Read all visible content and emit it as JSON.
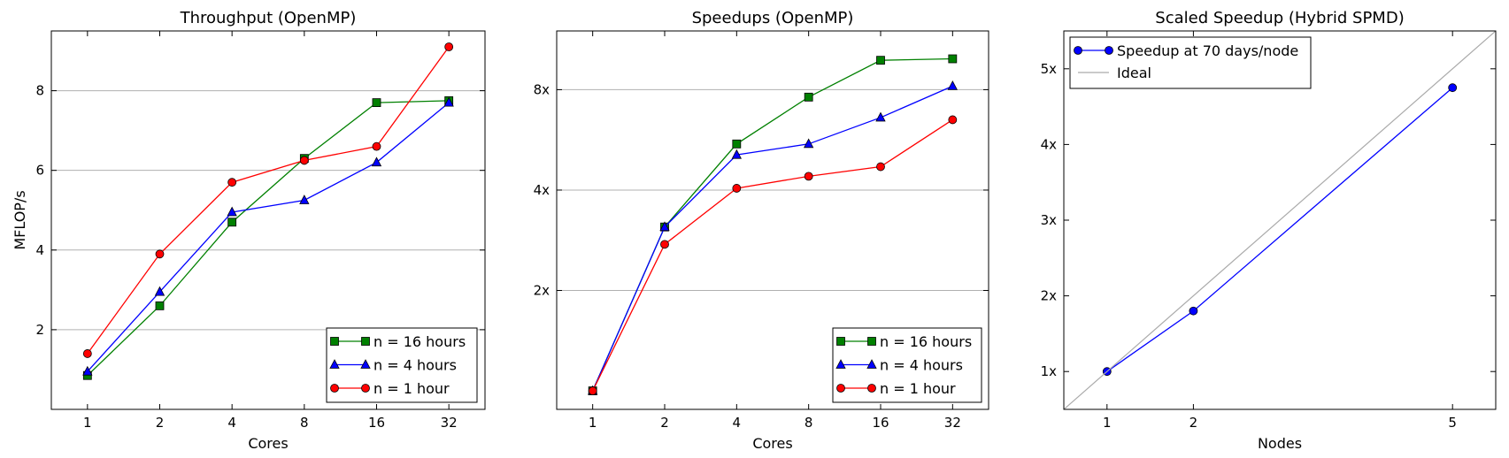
{
  "chart_data": [
    {
      "type": "line",
      "title": "Throughput (OpenMP)",
      "xlabel": "Cores",
      "ylabel": "MFLOP/s",
      "x_scale": "log2",
      "x": [
        1,
        2,
        4,
        8,
        16,
        32
      ],
      "x_tick_labels": [
        "1",
        "2",
        "4",
        "8",
        "16",
        "32"
      ],
      "ylim": [
        0,
        9.5
      ],
      "y_ticks": [
        2,
        4,
        6,
        8
      ],
      "y_tick_labels": [
        "2",
        "4",
        "6",
        "8"
      ],
      "grid": "horizontal",
      "legend_position": "lower-right",
      "series": [
        {
          "name": "n = 16 hours",
          "color": "#008000",
          "marker": "square",
          "values": [
            0.85,
            2.6,
            4.7,
            6.3,
            7.7,
            7.75
          ]
        },
        {
          "name": "n = 4 hours",
          "color": "#0000ff",
          "marker": "triangle",
          "values": [
            0.95,
            2.95,
            4.95,
            5.25,
            6.2,
            7.7
          ]
        },
        {
          "name": "n = 1 hour",
          "color": "#ff0000",
          "marker": "circle",
          "values": [
            1.4,
            3.9,
            5.7,
            6.25,
            6.6,
            9.1
          ]
        }
      ]
    },
    {
      "type": "line",
      "title": "Speedups (OpenMP)",
      "xlabel": "Cores",
      "ylabel": "",
      "x_scale": "log2",
      "x": [
        1,
        2,
        4,
        8,
        16,
        32
      ],
      "x_tick_labels": [
        "1",
        "2",
        "4",
        "8",
        "16",
        "32"
      ],
      "y_scale": "log2",
      "ylim": [
        0.88,
        12
      ],
      "y_ticks": [
        2,
        4,
        8
      ],
      "y_tick_labels": [
        "2x",
        "4x",
        "8x"
      ],
      "grid": "horizontal",
      "legend_position": "lower-right",
      "series": [
        {
          "name": "n = 16 hours",
          "color": "#008000",
          "marker": "square",
          "values": [
            1.0,
            3.1,
            5.5,
            7.6,
            9.8,
            9.9
          ]
        },
        {
          "name": "n = 4 hours",
          "color": "#0000ff",
          "marker": "triangle",
          "values": [
            1.0,
            3.1,
            5.1,
            5.5,
            6.6,
            8.2
          ]
        },
        {
          "name": "n = 1 hour",
          "color": "#ff0000",
          "marker": "circle",
          "values": [
            1.0,
            2.75,
            4.05,
            4.4,
            4.7,
            6.5
          ]
        }
      ]
    },
    {
      "type": "line",
      "title": "Scaled Speedup (Hybrid SPMD)",
      "xlabel": "Nodes",
      "ylabel": "",
      "x_scale": "linear",
      "xlim": [
        0.5,
        5.5
      ],
      "x_ticks": [
        1,
        2,
        5
      ],
      "x_tick_labels": [
        "1",
        "2",
        "5"
      ],
      "ylim": [
        0.5,
        5.5
      ],
      "y_ticks": [
        1,
        2,
        3,
        4,
        5
      ],
      "y_tick_labels": [
        "1x",
        "2x",
        "3x",
        "4x",
        "5x"
      ],
      "grid": "none",
      "legend_position": "upper-left",
      "series": [
        {
          "name": "Speedup at 70 days/node",
          "color": "#0000ff",
          "marker": "circle",
          "x": [
            1,
            2,
            5
          ],
          "values": [
            1.0,
            1.8,
            4.75
          ]
        },
        {
          "name": "Ideal",
          "color": "#aaaaaa",
          "marker": "none",
          "x": [
            0.5,
            5.5
          ],
          "values": [
            0.5,
            5.5
          ]
        }
      ]
    }
  ]
}
